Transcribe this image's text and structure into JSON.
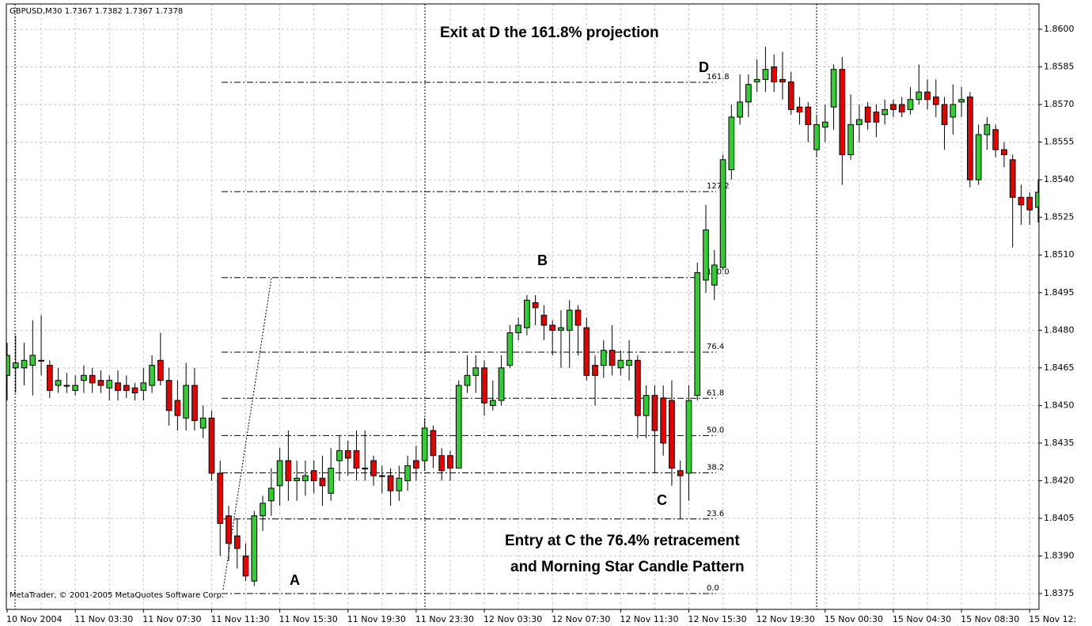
{
  "chart_data": {
    "type": "candlestick",
    "title": "GBPUSD,M30  1.7367 1.7382 1.7367 1.7378",
    "copyright": "MetaTrader, © 2001-2005 MetaQuotes Software Corp.",
    "annotations": [
      "Exit at D the 161.8% projection",
      "Entry at C the 76.4% retracement",
      "and Morning Star Candle Pattern",
      "A",
      "B",
      "C",
      "D"
    ],
    "up_color": "#32cd32",
    "down_color": "#e60000",
    "grid": true,
    "categories": [
      "10 Nov 2004",
      null,
      null,
      null,
      null,
      null,
      null,
      null,
      "11 Nov 03:30",
      null,
      null,
      null,
      null,
      null,
      null,
      null,
      "11 Nov 07:30",
      null,
      null,
      null,
      null,
      null,
      null,
      null,
      "11 Nov 11:30",
      null,
      null,
      null,
      null,
      null,
      null,
      null,
      "11 Nov 15:30",
      null,
      null,
      null,
      null,
      null,
      null,
      null,
      "11 Nov 19:30",
      null,
      null,
      null,
      null,
      null,
      null,
      null,
      "11 Nov 23:30",
      null,
      null,
      null,
      null,
      null,
      null,
      null,
      "12 Nov 03:30",
      null,
      null,
      null,
      null,
      null,
      null,
      null,
      "12 Nov 07:30",
      null,
      null,
      null,
      null,
      null,
      null,
      null,
      "12 Nov 11:30",
      null,
      null,
      null,
      null,
      null,
      null,
      null,
      "12 Nov 15:30",
      null,
      null,
      null,
      null,
      null,
      null,
      null,
      "12 Nov 19:30",
      null,
      null,
      null,
      null,
      null,
      null,
      null,
      "15 Nov 00:30",
      null,
      null,
      null,
      null,
      null,
      null,
      null,
      "15 Nov 04:30",
      null,
      null,
      null,
      null,
      null,
      null,
      null,
      "15 Nov 08:30",
      null,
      null,
      null,
      null,
      null,
      null,
      null,
      "15 Nov 12:",
      null
    ],
    "open": [
      1.8462,
      1.8465,
      1.8465,
      1.8466,
      1.8468,
      1.8466,
      1.8458,
      1.8458,
      1.8456,
      1.846,
      1.8462,
      1.846,
      1.8457,
      1.8459,
      1.8458,
      1.8457,
      1.8456,
      1.8458,
      1.8468,
      1.846,
      1.8452,
      1.8445,
      1.8458,
      1.8441,
      1.8445,
      1.8423,
      1.8406,
      1.8398,
      1.839,
      1.838,
      1.8406,
      1.8412,
      1.8418,
      1.8428,
      1.842,
      1.842,
      1.8424,
      1.8421,
      1.8415,
      1.8428,
      1.8432,
      1.8432,
      1.8425,
      1.8428,
      1.8422,
      1.8422,
      1.8416,
      1.842,
      1.8428,
      1.8428,
      1.844,
      1.843,
      1.843,
      1.8425,
      1.8458,
      1.8462,
      1.8465,
      1.845,
      1.8452,
      1.8466,
      1.8479,
      1.8481,
      1.8491,
      1.8486,
      1.8482,
      1.848,
      1.848,
      1.8488,
      1.8481,
      1.8466,
      1.8466,
      1.8472,
      1.8465,
      1.8466,
      1.8468,
      1.8446,
      1.8454,
      1.8453,
      1.8452,
      1.8424,
      1.8423,
      1.8454,
      1.85,
      1.8498,
      1.8505,
      1.8544,
      1.8565,
      1.8571,
      1.8579,
      1.858,
      1.8585,
      1.858,
      1.8579,
      1.8569,
      1.8569,
      1.8552,
      1.8561,
      1.8569,
      1.8584,
      1.855,
      1.8562,
      1.8569,
      1.8567,
      1.8566,
      1.857,
      1.857,
      1.8568,
      1.8572,
      1.8575,
      1.8573,
      1.857,
      1.8565,
      1.8571,
      1.8573,
      1.854,
      1.8558,
      1.856,
      1.8552,
      1.8548,
      1.8533,
      1.8533,
      1.8529
    ],
    "high": [
      1.8475,
      1.8478,
      1.8475,
      1.8484,
      1.8486,
      1.8468,
      1.8465,
      1.8463,
      1.8462,
      1.8466,
      1.8465,
      1.8464,
      1.8462,
      1.8464,
      1.8462,
      1.8459,
      1.8465,
      1.847,
      1.8479,
      1.8465,
      1.846,
      1.8467,
      1.8465,
      1.845,
      1.8448,
      1.8428,
      1.841,
      1.8405,
      1.8395,
      1.8408,
      1.8414,
      1.8425,
      1.8433,
      1.844,
      1.8428,
      1.8428,
      1.8428,
      1.843,
      1.8433,
      1.8438,
      1.8436,
      1.844,
      1.844,
      1.843,
      1.8426,
      1.8425,
      1.8426,
      1.843,
      1.8434,
      1.8445,
      1.8442,
      1.8433,
      1.8432,
      1.846,
      1.847,
      1.847,
      1.8468,
      1.846,
      1.847,
      1.8482,
      1.8485,
      1.8494,
      1.8494,
      1.849,
      1.8484,
      1.8488,
      1.8492,
      1.849,
      1.8485,
      1.847,
      1.8476,
      1.8482,
      1.8472,
      1.8476,
      1.847,
      1.8458,
      1.8458,
      1.8458,
      1.846,
      1.8428,
      1.8458,
      1.8507,
      1.853,
      1.8512,
      1.855,
      1.857,
      1.8582,
      1.8582,
      1.8588,
      1.8593,
      1.859,
      1.8591,
      1.8583,
      1.8573,
      1.8571,
      1.8566,
      1.857,
      1.8586,
      1.8589,
      1.8574,
      1.857,
      1.8571,
      1.857,
      1.8572,
      1.8572,
      1.8573,
      1.8577,
      1.8586,
      1.858,
      1.858,
      1.8573,
      1.8578,
      1.8577,
      1.8575,
      1.8562,
      1.8565,
      1.8562,
      1.8555,
      1.855,
      1.8538,
      1.8535,
      1.854
    ],
    "low": [
      1.8452,
      1.8455,
      1.8458,
      1.8454,
      1.8462,
      1.8453,
      1.8455,
      1.8455,
      1.8454,
      1.8455,
      1.8455,
      1.8455,
      1.8452,
      1.8452,
      1.8453,
      1.8452,
      1.8452,
      1.8455,
      1.8458,
      1.8442,
      1.844,
      1.844,
      1.844,
      1.8437,
      1.842,
      1.839,
      1.8388,
      1.8385,
      1.838,
      1.8378,
      1.84,
      1.8406,
      1.841,
      1.8412,
      1.8412,
      1.8414,
      1.8415,
      1.841,
      1.8412,
      1.842,
      1.8422,
      1.842,
      1.842,
      1.8418,
      1.8415,
      1.841,
      1.8412,
      1.8416,
      1.842,
      1.8424,
      1.8425,
      1.842,
      1.842,
      1.8425,
      1.8455,
      1.8455,
      1.8446,
      1.8448,
      1.845,
      1.8465,
      1.8476,
      1.8478,
      1.8482,
      1.8476,
      1.847,
      1.8465,
      1.8465,
      1.847,
      1.846,
      1.845,
      1.8461,
      1.8462,
      1.8462,
      1.846,
      1.8437,
      1.8437,
      1.8423,
      1.843,
      1.8418,
      1.8405,
      1.8412,
      1.8452,
      1.8495,
      1.8492,
      1.8504,
      1.854,
      1.8562,
      1.8565,
      1.8575,
      1.8575,
      1.8575,
      1.8572,
      1.8566,
      1.8562,
      1.8555,
      1.8549,
      1.8555,
      1.856,
      1.8538,
      1.8548,
      1.8555,
      1.856,
      1.8557,
      1.8562,
      1.8565,
      1.8565,
      1.8566,
      1.857,
      1.8568,
      1.8565,
      1.8552,
      1.8558,
      1.8565,
      1.8537,
      1.8538,
      1.8552,
      1.8549,
      1.8545,
      1.8513,
      1.8522,
      1.8522,
      1.8523
    ],
    "close": [
      1.847,
      1.8467,
      1.8468,
      1.847,
      1.8468,
      1.8456,
      1.846,
      1.8458,
      1.8458,
      1.8462,
      1.8459,
      1.8458,
      1.846,
      1.8456,
      1.8456,
      1.8455,
      1.8459,
      1.8466,
      1.846,
      1.8448,
      1.8446,
      1.8458,
      1.8444,
      1.8445,
      1.8423,
      1.8403,
      1.8395,
      1.8393,
      1.8382,
      1.8406,
      1.8411,
      1.8417,
      1.8428,
      1.842,
      1.8421,
      1.8422,
      1.842,
      1.8418,
      1.8425,
      1.8432,
      1.8429,
      1.8425,
      1.8425,
      1.8422,
      1.8422,
      1.8416,
      1.8421,
      1.8426,
      1.8425,
      1.8441,
      1.843,
      1.8424,
      1.8425,
      1.8458,
      1.8462,
      1.8465,
      1.8451,
      1.8452,
      1.8465,
      1.8479,
      1.8482,
      1.8492,
      1.8489,
      1.8482,
      1.848,
      1.8481,
      1.8488,
      1.8482,
      1.8462,
      1.8462,
      1.8472,
      1.8466,
      1.8468,
      1.8468,
      1.8446,
      1.8454,
      1.844,
      1.8435,
      1.8425,
      1.8422,
      1.8452,
      1.8503,
      1.852,
      1.8506,
      1.8548,
      1.8565,
      1.8571,
      1.8578,
      1.858,
      1.8584,
      1.8579,
      1.8579,
      1.8568,
      1.8567,
      1.8562,
      1.8562,
      1.8563,
      1.8584,
      1.855,
      1.8562,
      1.8564,
      1.8563,
      1.8563,
      1.8568,
      1.8568,
      1.8567,
      1.8572,
      1.8575,
      1.8572,
      1.857,
      1.8562,
      1.857,
      1.8572,
      1.854,
      1.8558,
      1.8562,
      1.8552,
      1.855,
      1.8533,
      1.853,
      1.8528,
      1.8535
    ],
    "ylim": [
      1.83687,
      1.86101
    ],
    "yticks": [
      1.8375,
      {
        "value": 1.839,
        "label": "1.8390"
      },
      1.8405,
      {
        "value": 1.842,
        "label": "1.8420"
      },
      1.8435,
      {
        "value": 1.845,
        "label": "1.8450"
      },
      1.8465,
      {
        "value": 1.848,
        "label": "1.8480"
      },
      1.8495,
      {
        "value": 1.851,
        "label": "1.8510"
      },
      1.8525,
      {
        "value": 1.854,
        "label": "1.8540"
      },
      1.8555,
      {
        "value": 1.857,
        "label": "1.8570"
      },
      1.8585,
      {
        "value": 1.86,
        "label": "1.8600"
      }
    ],
    "fib_from": 1.8375,
    "fib_to": 1.8501,
    "fib_levels": [
      {
        "value": 0,
        "label": "0.0"
      },
      23.6,
      38.2,
      {
        "value": 50,
        "label": "50.0"
      },
      61.8,
      76.4,
      {
        "value": 100,
        "label": "100.0"
      },
      127.2,
      161.8
    ]
  }
}
